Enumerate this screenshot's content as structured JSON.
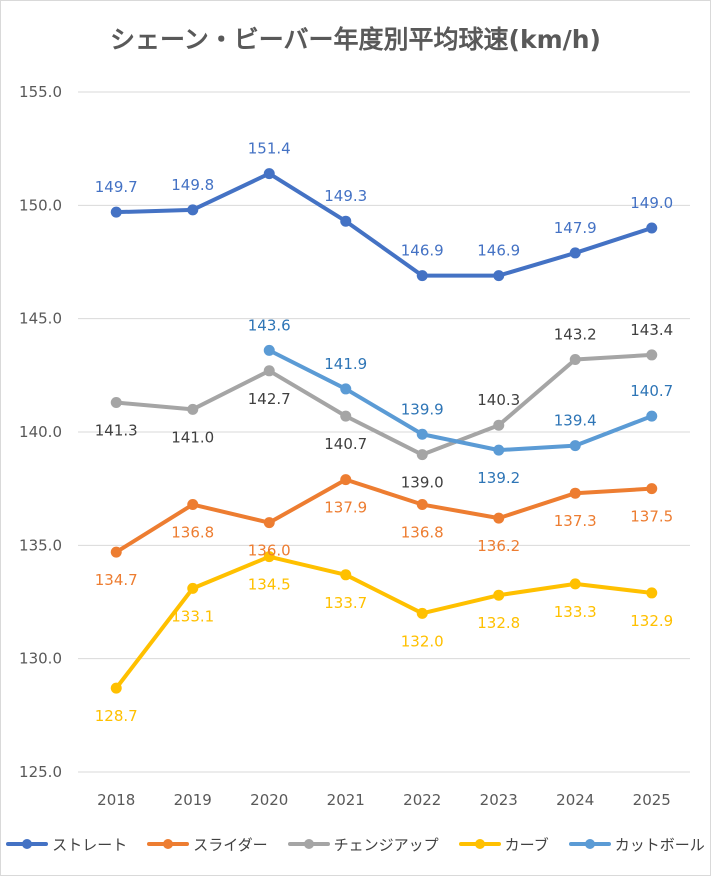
{
  "chart_data": {
    "type": "line",
    "title": "シェーン・ビーバー年度別平均球速(km/h)",
    "xlabel": "",
    "ylabel": "",
    "categories": [
      "2018",
      "2019",
      "2020",
      "2021",
      "2022",
      "2023",
      "2024",
      "2025"
    ],
    "ylim": [
      125.0,
      155.0
    ],
    "yticks": [
      "125.0",
      "130.0",
      "135.0",
      "140.0",
      "145.0",
      "150.0",
      "155.0"
    ],
    "grid": true,
    "legend": "bottom",
    "series": [
      {
        "name": "ストレート",
        "color": "#4472c4",
        "label_color": "#4472c4",
        "values": [
          149.7,
          149.8,
          151.4,
          149.3,
          146.9,
          146.9,
          147.9,
          149.0
        ],
        "labels": [
          "149.7",
          "149.8",
          "151.4",
          "149.3",
          "146.9",
          "146.9",
          "147.9",
          "149.0"
        ],
        "label_pos": [
          "above",
          "above",
          "above",
          "above",
          "above",
          "above",
          "above",
          "above"
        ]
      },
      {
        "name": "スライダー",
        "color": "#ed7d31",
        "label_color": "#ed7d31",
        "values": [
          134.7,
          136.8,
          136.0,
          137.9,
          136.8,
          136.2,
          137.3,
          137.5
        ],
        "labels": [
          "134.7",
          "136.8",
          "136.0",
          "137.9",
          "136.8",
          "136.2",
          "137.3",
          "137.5"
        ],
        "label_pos": [
          "below",
          "below",
          "below",
          "below",
          "below",
          "below",
          "below",
          "below"
        ]
      },
      {
        "name": "チェンジアップ",
        "color": "#a5a5a5",
        "label_color": "#404040",
        "values": [
          141.3,
          141.0,
          142.7,
          140.7,
          139.0,
          140.3,
          143.2,
          143.4
        ],
        "labels": [
          "141.3",
          "141.0",
          "142.7",
          "140.7",
          "139.0",
          "140.3",
          "143.2",
          "143.4"
        ],
        "label_pos": [
          "below",
          "below",
          "below",
          "below",
          "below",
          "above",
          "above",
          "above"
        ]
      },
      {
        "name": "カーブ",
        "color": "#ffc000",
        "label_color": "#ffc000",
        "values": [
          128.7,
          133.1,
          134.5,
          133.7,
          132.0,
          132.8,
          133.3,
          132.9
        ],
        "labels": [
          "128.7",
          "133.1",
          "134.5",
          "133.7",
          "132.0",
          "132.8",
          "133.3",
          "132.9"
        ],
        "label_pos": [
          "below",
          "below",
          "below",
          "below",
          "below",
          "below",
          "below",
          "below"
        ]
      },
      {
        "name": "カットボール",
        "color": "#5b9bd5",
        "label_color": "#2e75b6",
        "values": [
          null,
          null,
          143.6,
          141.9,
          139.9,
          139.2,
          139.4,
          140.7
        ],
        "labels": [
          null,
          null,
          "143.6",
          "141.9",
          "139.9",
          "139.2",
          "139.4",
          "140.7"
        ],
        "label_pos": [
          null,
          null,
          "above",
          "above",
          "above",
          "below",
          "above",
          "above"
        ]
      }
    ]
  }
}
